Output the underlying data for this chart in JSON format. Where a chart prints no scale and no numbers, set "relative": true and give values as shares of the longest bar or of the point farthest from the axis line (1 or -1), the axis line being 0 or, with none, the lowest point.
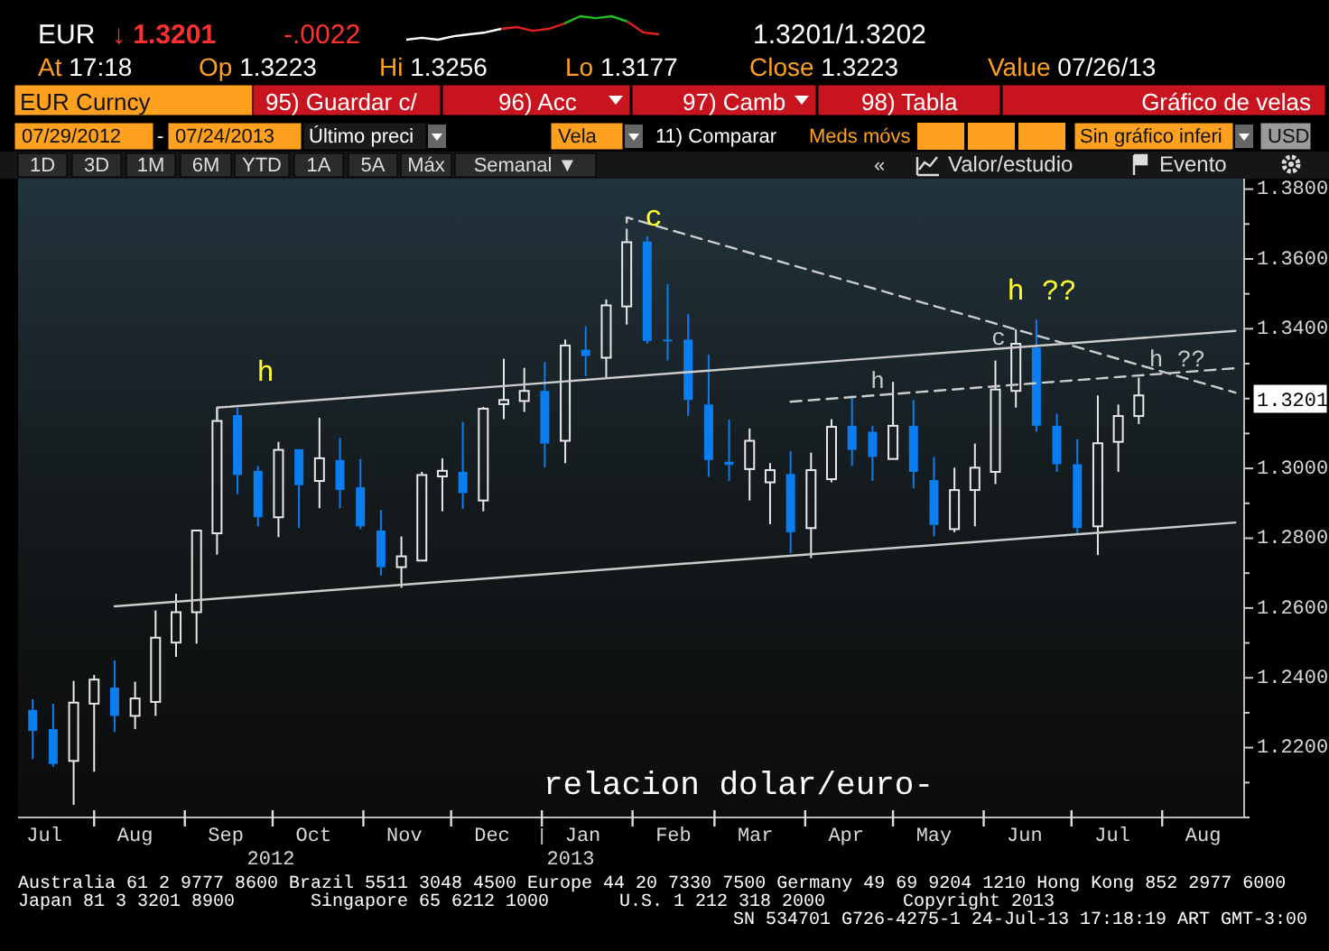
{
  "chart_data": [
    {
      "type": "candlestick",
      "x": [
        "2012-07-11",
        "2012-07-18",
        "2012-07-25",
        "2012-08-01",
        "2012-08-08",
        "2012-08-15",
        "2012-08-22",
        "2012-08-29",
        "2012-09-05",
        "2012-09-12",
        "2012-09-19",
        "2012-09-26",
        "2012-10-03",
        "2012-10-10",
        "2012-10-17",
        "2012-10-24",
        "2012-10-31",
        "2012-11-07",
        "2012-11-14",
        "2012-11-21",
        "2012-11-28",
        "2012-12-05",
        "2012-12-12",
        "2012-12-19",
        "2012-12-26",
        "2013-01-02",
        "2013-01-09",
        "2013-01-16",
        "2013-01-23",
        "2013-01-30",
        "2013-02-06",
        "2013-02-13",
        "2013-02-20",
        "2013-02-27",
        "2013-03-06",
        "2013-03-13",
        "2013-03-20",
        "2013-03-27",
        "2013-04-03",
        "2013-04-10",
        "2013-04-17",
        "2013-04-24",
        "2013-05-01",
        "2013-05-08",
        "2013-05-15",
        "2013-05-22",
        "2013-05-29",
        "2013-06-05",
        "2013-06-12",
        "2013-06-19",
        "2013-06-26",
        "2013-07-03",
        "2013-07-10",
        "2013-07-17",
        "2013-07-24"
      ],
      "ohlc": [
        [
          1.2308,
          1.2339,
          1.2167,
          1.2248
        ],
        [
          1.2253,
          1.2326,
          1.2145,
          1.2153
        ],
        [
          1.2162,
          1.2391,
          1.2036,
          1.2329
        ],
        [
          1.2326,
          1.2408,
          1.2131,
          1.2395
        ],
        [
          1.2372,
          1.245,
          1.2245,
          1.2291
        ],
        [
          1.2291,
          1.2389,
          1.2253,
          1.2341
        ],
        [
          1.2331,
          1.2593,
          1.2291,
          1.2515
        ],
        [
          1.2501,
          1.2641,
          1.246,
          1.2588
        ],
        [
          1.2588,
          1.2822,
          1.2498,
          1.2822
        ],
        [
          1.2814,
          1.3174,
          1.2753,
          1.3136
        ],
        [
          1.3153,
          1.3174,
          1.2926,
          1.2981
        ],
        [
          1.2993,
          1.3007,
          1.2834,
          1.286
        ],
        [
          1.286,
          1.3076,
          1.2803,
          1.3053
        ],
        [
          1.3055,
          1.3055,
          1.2829,
          1.2952
        ],
        [
          1.2964,
          1.3145,
          1.2886,
          1.3029
        ],
        [
          1.3024,
          1.3088,
          1.2886,
          1.2938
        ],
        [
          1.2946,
          1.3027,
          1.2826,
          1.2834
        ],
        [
          1.2822,
          1.2881,
          1.2693,
          1.2717
        ],
        [
          1.2717,
          1.2805,
          1.2658,
          1.2748
        ],
        [
          1.2736,
          1.299,
          1.2736,
          1.2981
        ],
        [
          1.2977,
          1.3029,
          1.2877,
          1.2993
        ],
        [
          1.299,
          1.3133,
          1.2884,
          1.2929
        ],
        [
          1.2908,
          1.3176,
          1.2877,
          1.3171
        ],
        [
          1.3184,
          1.3314,
          1.3141,
          1.3196
        ],
        [
          1.3193,
          1.3288,
          1.3162,
          1.3222
        ],
        [
          1.3222,
          1.3305,
          1.3003,
          1.3071
        ],
        [
          1.3079,
          1.3369,
          1.3015,
          1.3352
        ],
        [
          1.334,
          1.3407,
          1.3264,
          1.3322
        ],
        [
          1.3317,
          1.3484,
          1.326,
          1.3467
        ],
        [
          1.3464,
          1.3653,
          1.3412,
          1.3648
        ],
        [
          1.365,
          1.3665,
          1.3357,
          1.3365
        ],
        [
          1.3369,
          1.3528,
          1.3309,
          1.3365
        ],
        [
          1.3369,
          1.3443,
          1.315,
          1.3196
        ],
        [
          1.3183,
          1.3326,
          1.2976,
          1.3024
        ],
        [
          1.3019,
          1.314,
          1.2964,
          1.301
        ],
        [
          1.2998,
          1.3114,
          1.2908,
          1.3079
        ],
        [
          1.296,
          1.3015,
          1.284,
          1.2995
        ],
        [
          1.2984,
          1.305,
          1.2757,
          1.2817
        ],
        [
          1.2829,
          1.3045,
          1.2743,
          1.2995
        ],
        [
          1.2969,
          1.3141,
          1.296,
          1.3119
        ],
        [
          1.3122,
          1.3209,
          1.3007,
          1.3053
        ],
        [
          1.3105,
          1.3122,
          1.2964,
          1.3033
        ],
        [
          1.3027,
          1.3248,
          1.3027,
          1.3122
        ],
        [
          1.3122,
          1.3196,
          1.2943,
          1.299
        ],
        [
          1.2967,
          1.3033,
          1.2805,
          1.2838
        ],
        [
          1.2826,
          1.3002,
          1.2817,
          1.2938
        ],
        [
          1.2938,
          1.3071,
          1.2834,
          1.3002
        ],
        [
          1.299,
          1.3309,
          1.2955,
          1.3226
        ],
        [
          1.3222,
          1.3398,
          1.3174,
          1.3357
        ],
        [
          1.3346,
          1.3426,
          1.3105,
          1.3122
        ],
        [
          1.3122,
          1.3157,
          1.299,
          1.3012
        ],
        [
          1.3012,
          1.3084,
          1.2812,
          1.2829
        ],
        [
          1.2834,
          1.3209,
          1.2752,
          1.3072
        ],
        [
          1.3076,
          1.3183,
          1.299,
          1.315
        ],
        [
          1.315,
          1.326,
          1.3127,
          1.3209
        ]
      ],
      "colors": [
        "#0a7ef0",
        "#0a7ef0",
        "#e8e8e8",
        "#e8e8e8",
        "#0a7ef0",
        "#e8e8e8",
        "#e8e8e8",
        "#e8e8e8",
        "#e8e8e8",
        "#e8e8e8",
        "#0a7ef0",
        "#0a7ef0",
        "#e8e8e8",
        "#0a7ef0",
        "#e8e8e8",
        "#0a7ef0",
        "#0a7ef0",
        "#0a7ef0",
        "#e8e8e8",
        "#e8e8e8",
        "#e8e8e8",
        "#0a7ef0",
        "#e8e8e8",
        "#e8e8e8",
        "#e8e8e8",
        "#0a7ef0",
        "#e8e8e8",
        "#0a7ef0",
        "#e8e8e8",
        "#e8e8e8",
        "#0a7ef0",
        "#0a7ef0",
        "#0a7ef0",
        "#0a7ef0",
        "#0a7ef0",
        "#e8e8e8",
        "#e8e8e8",
        "#0a7ef0",
        "#e8e8e8",
        "#e8e8e8",
        "#0a7ef0",
        "#0a7ef0",
        "#e8e8e8",
        "#0a7ef0",
        "#0a7ef0",
        "#e8e8e8",
        "#e8e8e8",
        "#e8e8e8",
        "#e8e8e8",
        "#0a7ef0",
        "#0a7ef0",
        "#0a7ef0",
        "#e8e8e8",
        "#e8e8e8",
        "#e8e8e8"
      ],
      "series": [
        {
          "type": "line",
          "x": [
            "2012-09-12",
            "2012-09-12",
            "2013-08-26"
          ],
          "values": [
            1.3136,
            1.3174,
            1.3394
          ],
          "color": "#cccccc",
          "line_style": "solid"
        },
        {
          "type": "line",
          "x": [
            "2012-08-08",
            "2013-08-26"
          ],
          "values": [
            1.2605,
            1.2845
          ],
          "color": "#cccccc",
          "line_style": "solid"
        },
        {
          "type": "line",
          "x": [
            "2013-01-30",
            "2013-01-30",
            "2013-08-26"
          ],
          "values": [
            1.3653,
            1.3719,
            1.3217
          ],
          "color": "#cccccc",
          "line_style": "dashed"
        },
        {
          "type": "line",
          "x": [
            "2013-03-27",
            "2013-08-26"
          ],
          "values": [
            1.3191,
            1.3287
          ],
          "color": "#cccccc",
          "line_style": "dashed"
        }
      ],
      "xlim": [
        "2012-07-06",
        "2013-08-29"
      ],
      "ylim": [
        1.2,
        1.383
      ],
      "xticks": [
        {
          "value": "2012-07-15",
          "label": "Jul"
        },
        {
          "value": "2012-08-01",
          "label": null
        },
        {
          "value": "2012-08-15",
          "label": "Aug"
        },
        {
          "value": "2012-09-01",
          "label": null
        },
        {
          "value": "2012-09-15",
          "label": "Sep"
        },
        {
          "value": "2012-10-01",
          "label": null
        },
        {
          "value": "2012-10-15",
          "label": "Oct"
        },
        {
          "value": "2012-11-01",
          "label": null
        },
        {
          "value": "2012-11-15",
          "label": "Nov"
        },
        {
          "value": "2012-12-01",
          "label": null
        },
        {
          "value": "2012-12-15",
          "label": "Dec"
        },
        {
          "value": "2013-01-01",
          "label": null
        },
        {
          "value": "2013-01-15",
          "label": "Jan"
        },
        {
          "value": "2013-02-01",
          "label": null
        },
        {
          "value": "2013-02-15",
          "label": "Feb"
        },
        {
          "value": "2013-03-01",
          "label": null
        },
        {
          "value": "2013-03-15",
          "label": "Mar"
        },
        {
          "value": "2013-04-01",
          "label": null
        },
        {
          "value": "2013-04-15",
          "label": "Apr"
        },
        {
          "value": "2013-05-01",
          "label": null
        },
        {
          "value": "2013-05-15",
          "label": "May"
        },
        {
          "value": "2013-06-01",
          "label": null
        },
        {
          "value": "2013-06-15",
          "label": "Jun"
        },
        {
          "value": "2013-07-01",
          "label": null
        },
        {
          "value": "2013-07-15",
          "label": "Jul"
        },
        {
          "value": "2013-08-01",
          "label": null
        },
        {
          "value": "2013-08-15",
          "label": "Aug"
        }
      ],
      "yticks": [
        {
          "value": 1.2,
          "label": null
        },
        {
          "value": 1.21,
          "label": null
        },
        {
          "value": 1.22,
          "label": "1.2200"
        },
        {
          "value": 1.23,
          "label": null
        },
        {
          "value": 1.24,
          "label": "1.2400"
        },
        {
          "value": 1.25,
          "label": null
        },
        {
          "value": 1.26,
          "label": "1.2600"
        },
        {
          "value": 1.27,
          "label": null
        },
        {
          "value": 1.28,
          "label": "1.2800"
        },
        {
          "value": 1.29,
          "label": null
        },
        {
          "value": 1.3,
          "label": "1.3000"
        },
        {
          "value": 1.31,
          "label": null
        },
        {
          "value": 1.32,
          "label": null
        },
        {
          "value": 1.33,
          "label": null
        },
        {
          "value": 1.34,
          "label": "1.3400"
        },
        {
          "value": 1.35,
          "label": null
        },
        {
          "value": 1.36,
          "label": "1.3600"
        },
        {
          "value": 1.37,
          "label": null
        },
        {
          "value": 1.38,
          "label": "1.3800"
        }
      ],
      "annotations": [
        "EUR",
        "↓ 1.3201",
        "-.0022",
        "1.3201/1.3202",
        "At 17:18",
        "Op 1.3223",
        "Hi 1.3256",
        "Lo 1.3177",
        "Close 1.3223",
        "Value 07/26/13",
        "EUR Curncy",
        "95) Guardar c/",
        "96) Acc",
        "97) Camb",
        "98) Tabla",
        "Gráfico de velas",
        "07/29/2012",
        "-",
        "07/24/2013",
        "Último preci",
        "Vela",
        "11) Comparar",
        "Meds móvs",
        "Sin gráfico inferi",
        "USD",
        "1D",
        "3D",
        "1M",
        "6M",
        "YTD",
        "1A",
        "5A",
        "Máx",
        "Semanal ▼",
        "«",
        "Valor/estudio",
        "Evento",
        "Australia 61 2 9777 8600 Brazil 5511 3048 4500 Europe 44 20 7330 7500 Germany 49 69 9204 1210 Hong Kong 852 2977 6000",
        "Japan 81 3 3201 8900",
        "Singapore 65 6212 1000",
        "U.S. 1 212 318 2000",
        "Copyright 2013",
        "SN 534701 G726-4275-1 24-Jul-13 17:18:19 ART GMT-3:00",
        "relacion dolar/euro-",
        "2012",
        "2013",
        "h",
        "c",
        "h ??",
        "c",
        "h",
        "h ??",
        "1.3201"
      ]
    },
    {
      "type": "line",
      "relative": true,
      "categories": [
        null,
        null,
        null,
        null,
        null,
        null,
        null,
        null,
        null,
        null,
        null,
        null,
        null,
        null,
        null,
        null,
        null
      ],
      "series": [
        {
          "color": "#ffffff",
          "values": [
            0,
            0.08,
            0,
            0.15,
            0.23,
            0.31,
            0.46,
            null,
            null,
            null,
            null,
            null,
            null,
            null,
            null,
            null,
            null
          ]
        },
        {
          "color": "#e02020",
          "values": [
            null,
            null,
            null,
            null,
            null,
            null,
            0.46,
            0.54,
            0.38,
            0.46,
            0.69,
            null,
            null,
            null,
            null,
            null,
            null
          ]
        },
        {
          "color": "#20c020",
          "values": [
            null,
            null,
            null,
            null,
            null,
            null,
            null,
            null,
            null,
            null,
            0.69,
            1,
            0.92,
            1,
            0.77,
            null,
            null
          ]
        },
        {
          "color": "#e02020",
          "values": [
            null,
            null,
            null,
            null,
            null,
            null,
            null,
            null,
            null,
            null,
            null,
            null,
            null,
            null,
            0.77,
            0.31,
            0.23
          ]
        }
      ]
    }
  ]
}
